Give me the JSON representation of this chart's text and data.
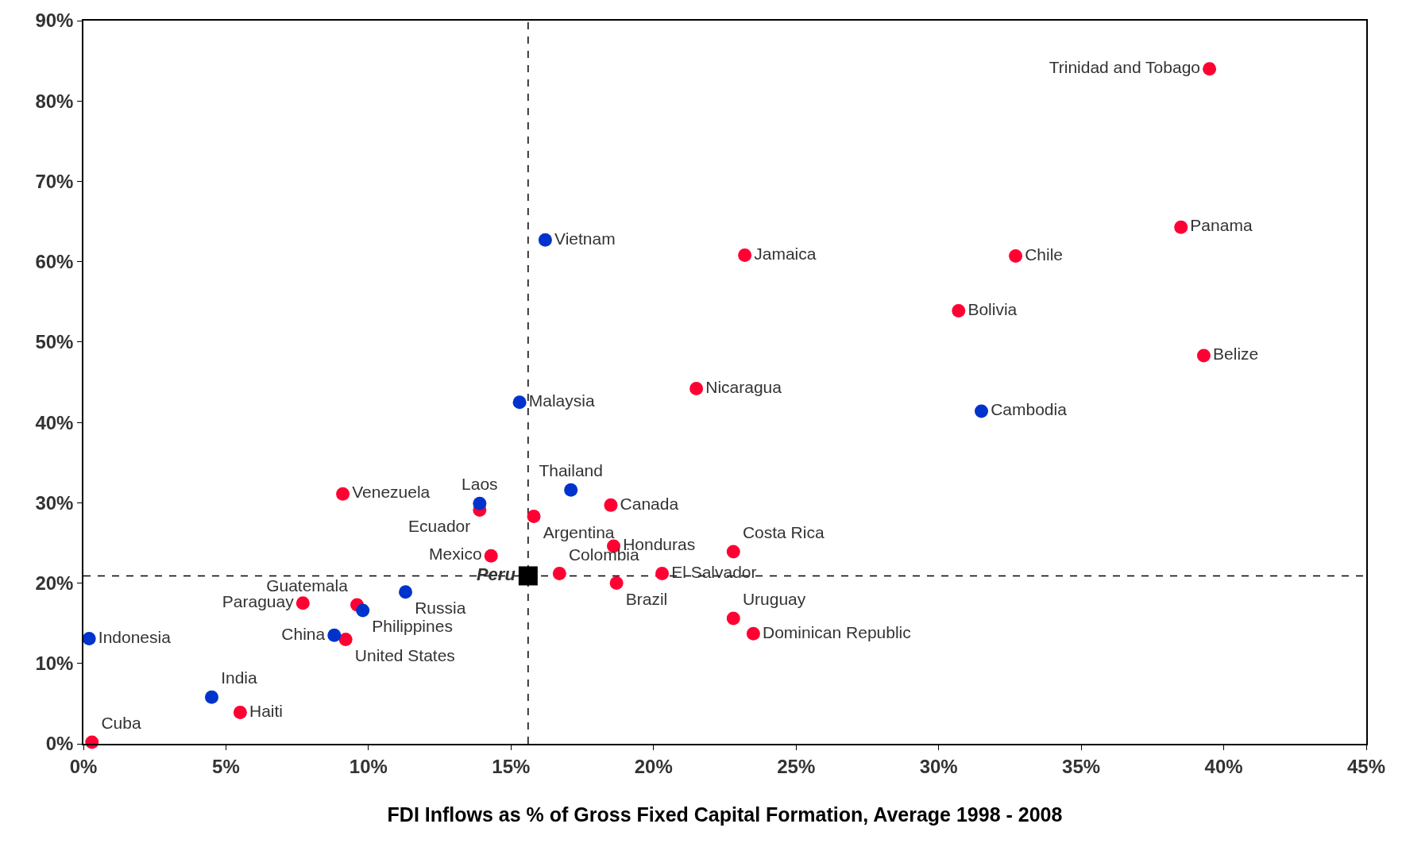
{
  "chart_data": {
    "type": "scatter",
    "xlabel": "FDI Inflows as % of Gross Fixed Capital Formation, Average 1998 - 2008",
    "xlim": [
      0,
      45
    ],
    "ylim": [
      0,
      90
    ],
    "xticks": [
      {
        "value": 0,
        "label": "0%"
      },
      {
        "value": 5,
        "label": "5%"
      },
      {
        "value": 10,
        "label": "10%"
      },
      {
        "value": 15,
        "label": "15%"
      },
      {
        "value": 20,
        "label": "20%"
      },
      {
        "value": 25,
        "label": "25%"
      },
      {
        "value": 30,
        "label": "30%"
      },
      {
        "value": 35,
        "label": "35%"
      },
      {
        "value": 40,
        "label": "40%"
      },
      {
        "value": 45,
        "label": "45%"
      }
    ],
    "yticks": [
      {
        "value": 0,
        "label": "0%"
      },
      {
        "value": 10,
        "label": "10%"
      },
      {
        "value": 20,
        "label": "20%"
      },
      {
        "value": 30,
        "label": "30%"
      },
      {
        "value": 40,
        "label": "40%"
      },
      {
        "value": 50,
        "label": "50%"
      },
      {
        "value": 60,
        "label": "60%"
      },
      {
        "value": 70,
        "label": "70%"
      },
      {
        "value": 80,
        "label": "80%"
      },
      {
        "value": 90,
        "label": "90%"
      }
    ],
    "grid": false,
    "legend": false,
    "marker": "circle",
    "ref_lines": [
      {
        "axis": "x",
        "value": 15.6,
        "label": null,
        "color": "#000000",
        "line_style": "dashed"
      },
      {
        "axis": "y",
        "value": 20.9,
        "label": null,
        "color": "#000000",
        "line_style": "dashed"
      }
    ],
    "series": [
      {
        "name": "Trinidad and Tobago",
        "color": "#ff0033",
        "x": [
          39.5
        ],
        "values": [
          84.0
        ]
      },
      {
        "name": "Panama",
        "color": "#ff0033",
        "x": [
          38.5
        ],
        "values": [
          64.3
        ]
      },
      {
        "name": "Chile",
        "color": "#ff0033",
        "x": [
          32.7
        ],
        "values": [
          60.7
        ]
      },
      {
        "name": "Jamaica",
        "color": "#ff0033",
        "x": [
          23.2
        ],
        "values": [
          60.8
        ]
      },
      {
        "name": "Bolivia",
        "color": "#ff0033",
        "x": [
          30.7
        ],
        "values": [
          53.9
        ]
      },
      {
        "name": "Belize",
        "color": "#ff0033",
        "x": [
          39.3
        ],
        "values": [
          48.3
        ]
      },
      {
        "name": "Nicaragua",
        "color": "#ff0033",
        "x": [
          21.5
        ],
        "values": [
          44.2
        ]
      },
      {
        "name": "Venezuela",
        "color": "#ff0033",
        "x": [
          9.1
        ],
        "values": [
          31.1
        ]
      },
      {
        "name": "Ecuador",
        "color": "#ff0033",
        "x": [
          13.9
        ],
        "values": [
          29.1
        ]
      },
      {
        "name": "Argentina",
        "color": "#ff0033",
        "x": [
          15.8
        ],
        "values": [
          28.3
        ]
      },
      {
        "name": "Canada",
        "color": "#ff0033",
        "x": [
          18.5
        ],
        "values": [
          29.7
        ]
      },
      {
        "name": "Honduras",
        "color": "#ff0033",
        "x": [
          18.6
        ],
        "values": [
          24.6
        ]
      },
      {
        "name": "Costa Rica",
        "color": "#ff0033",
        "x": [
          22.8
        ],
        "values": [
          23.9
        ]
      },
      {
        "name": "Mexico",
        "color": "#ff0033",
        "x": [
          14.3
        ],
        "values": [
          23.4
        ]
      },
      {
        "name": "Colombia",
        "color": "#ff0033",
        "x": [
          16.7
        ],
        "values": [
          21.2
        ]
      },
      {
        "name": "El Salvador",
        "color": "#ff0033",
        "x": [
          20.3
        ],
        "values": [
          21.2
        ]
      },
      {
        "name": "Brazil",
        "color": "#ff0033",
        "x": [
          18.7
        ],
        "values": [
          20.0
        ]
      },
      {
        "name": "Paraguay",
        "color": "#ff0033",
        "x": [
          7.7
        ],
        "values": [
          17.5
        ]
      },
      {
        "name": "Guatemala",
        "color": "#ff0033",
        "x": [
          9.6
        ],
        "values": [
          17.3
        ]
      },
      {
        "name": "United States",
        "color": "#ff0033",
        "x": [
          9.2
        ],
        "values": [
          13.0
        ]
      },
      {
        "name": "Uruguay",
        "color": "#ff0033",
        "x": [
          22.8
        ],
        "values": [
          15.6
        ]
      },
      {
        "name": "Dominican Republic",
        "color": "#ff0033",
        "x": [
          23.5
        ],
        "values": [
          13.7
        ]
      },
      {
        "name": "Haiti",
        "color": "#ff0033",
        "x": [
          5.5
        ],
        "values": [
          3.9
        ]
      },
      {
        "name": "Cuba",
        "color": "#ff0033",
        "x": [
          0.3
        ],
        "values": [
          0.2
        ]
      },
      {
        "name": "Vietnam",
        "color": "#0033cc",
        "x": [
          16.2
        ],
        "values": [
          62.7
        ]
      },
      {
        "name": "Malaysia",
        "color": "#0033cc",
        "x": [
          15.3
        ],
        "values": [
          42.5
        ]
      },
      {
        "name": "Cambodia",
        "color": "#0033cc",
        "x": [
          31.5
        ],
        "values": [
          41.4
        ]
      },
      {
        "name": "Thailand",
        "color": "#0033cc",
        "x": [
          17.1
        ],
        "values": [
          31.6
        ]
      },
      {
        "name": "Laos",
        "color": "#0033cc",
        "x": [
          13.9
        ],
        "values": [
          29.9
        ]
      },
      {
        "name": "Russia",
        "color": "#0033cc",
        "x": [
          11.3
        ],
        "values": [
          18.9
        ]
      },
      {
        "name": "Philippines",
        "color": "#0033cc",
        "x": [
          9.8
        ],
        "values": [
          16.6
        ]
      },
      {
        "name": "China",
        "color": "#0033cc",
        "x": [
          8.8
        ],
        "values": [
          13.5
        ]
      },
      {
        "name": "Indonesia",
        "color": "#0033cc",
        "x": [
          0.2
        ],
        "values": [
          13.1
        ]
      },
      {
        "name": "India",
        "color": "#0033cc",
        "x": [
          4.5
        ],
        "values": [
          5.8
        ]
      },
      {
        "name": "Peru",
        "color": "#000000",
        "x": [
          15.6
        ],
        "values": [
          20.9
        ],
        "marker": "square"
      }
    ]
  }
}
